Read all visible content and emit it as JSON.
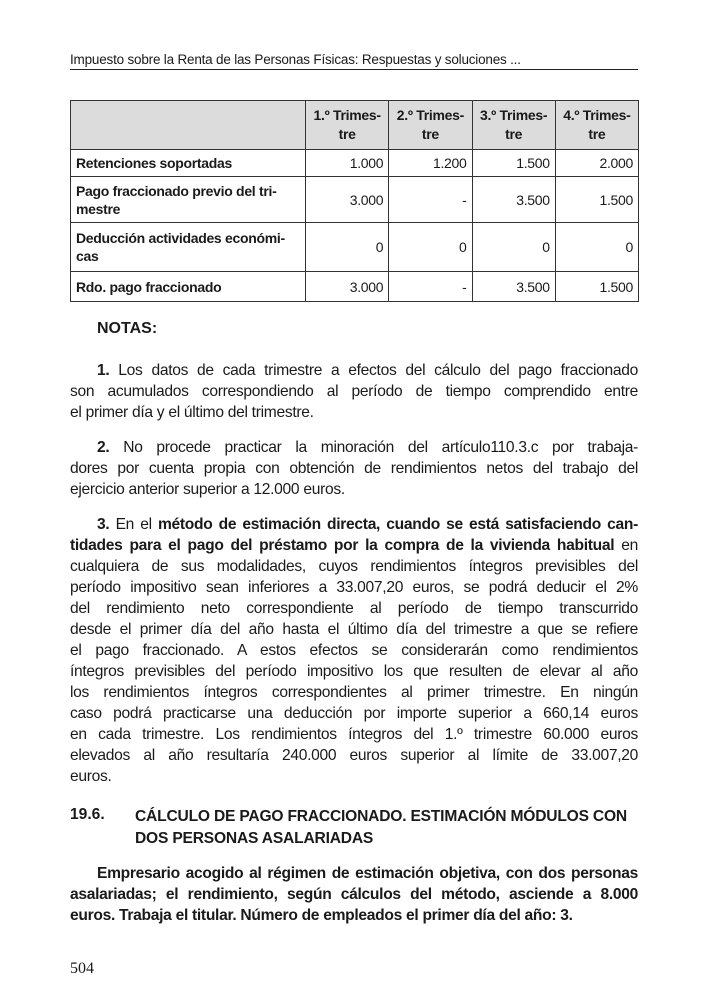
{
  "header": {
    "running_title": "Impuesto sobre la Renta de las Personas Físicas: Respuestas y soluciones ..."
  },
  "table": {
    "columns": [
      "1.º Trimes-\ntre",
      "2.º Trimes-\ntre",
      "3.º Trimes-\ntre",
      "4.º Trimes-\ntre"
    ],
    "rows": [
      {
        "label": "Retenciones soportadas",
        "values": [
          "1.000",
          "1.200",
          "1.500",
          "2.000"
        ]
      },
      {
        "label": "Pago fraccionado previo del tri-\nmestre",
        "values": [
          "3.000",
          "-",
          "3.500",
          "1.500"
        ]
      },
      {
        "label": "Deducción actividades económi-\ncas",
        "values": [
          "0",
          "0",
          "0",
          "0"
        ]
      },
      {
        "label": "Rdo. pago fraccionado",
        "values": [
          "3.000",
          "-",
          "3.500",
          "1.500"
        ]
      }
    ]
  },
  "notes": {
    "title": "NOTAS:",
    "paragraphs": [
      [
        [
          [
            "1.",
            true
          ],
          [
            " Los datos de cada trimestre a efectos del cálculo del pago fraccionado",
            false
          ]
        ],
        [
          [
            "son acumulados correspondiendo al período de tiempo comprendido entre",
            false
          ]
        ],
        [
          [
            "el primer día y el último del trimestre.",
            false
          ]
        ]
      ],
      [
        [
          [
            "2.",
            true
          ],
          [
            " No procede practicar la minoración del artículo110.3.c por trabaja-",
            false
          ]
        ],
        [
          [
            "dores por cuenta propia con obtención de rendimientos netos del trabajo del",
            false
          ]
        ],
        [
          [
            "ejercicio anterior superior a 12.000 euros.",
            false
          ]
        ]
      ],
      [
        [
          [
            "3.",
            true
          ],
          [
            " En el ",
            false
          ],
          [
            "método de estimación directa, cuando se está satisfaciendo can-",
            true
          ]
        ],
        [
          [
            "tidades para el pago del préstamo por la compra de la vivienda habitual",
            true
          ],
          [
            " en",
            false
          ]
        ],
        [
          [
            "cualquiera de sus modalidades, cuyos rendimientos íntegros previsibles del",
            false
          ]
        ],
        [
          [
            "período impositivo sean inferiores a 33.007,20 euros, se podrá deducir el 2%",
            false
          ]
        ],
        [
          [
            "del rendimiento neto correspondiente al período de tiempo transcurrido",
            false
          ]
        ],
        [
          [
            "desde el primer día del año hasta el último día del trimestre a que se refiere",
            false
          ]
        ],
        [
          [
            "el pago fraccionado. A estos efectos se considerarán como rendimientos",
            false
          ]
        ],
        [
          [
            "íntegros previsibles del período impositivo los que resulten de elevar al año",
            false
          ]
        ],
        [
          [
            "los rendimientos íntegros correspondientes al primer trimestre. En ningún",
            false
          ]
        ],
        [
          [
            "caso podrá practicarse una deducción por importe superior a 660,14 euros",
            false
          ]
        ],
        [
          [
            "en cada trimestre. Los rendimientos íntegros del 1.º trimestre 60.000 euros",
            false
          ]
        ],
        [
          [
            "elevados al año resultaría 240.000 euros superior al límite de 33.007,20",
            false
          ]
        ],
        [
          [
            "euros.",
            false
          ]
        ]
      ]
    ]
  },
  "section": {
    "number": "19.6.",
    "title": "CÁLCULO DE PAGO FRACCIONADO. ESTIMACIÓN MÓDULOS CON DOS PERSONAS ASALARIADAS",
    "intro": [
      [
        [
          "Empresario acogido al régimen de estimación objetiva, con dos personas",
          true
        ]
      ],
      [
        [
          "asalariadas; el rendimiento, según cálculos del método, asciende a 8.000",
          true
        ]
      ],
      [
        [
          "euros. Trabaja el titular. Número de empleados el primer día del año: 3.",
          true
        ]
      ]
    ]
  },
  "footer": {
    "page_number": "504"
  }
}
